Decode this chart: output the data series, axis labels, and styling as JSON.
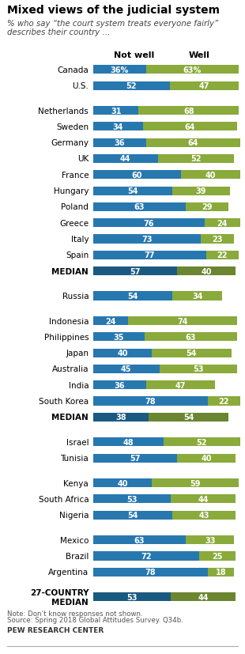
{
  "title": "Mixed views of the judicial system",
  "subtitle_line1": "% who say “the court system treats everyone fairly”",
  "subtitle_line2": "describes their country …",
  "color_not_well": "#2878b0",
  "color_well": "#8aaa3c",
  "color_median_not_well": "#1a5a80",
  "color_median_well": "#6b8530",
  "note_line1": "Note: Don’t know responses not shown.",
  "note_line2": "Source: Spring 2018 Global Attitudes Survey. Q34b.",
  "source": "PEW RESEARCH CENTER",
  "rows": [
    {
      "label": "Canada",
      "not_well": 36,
      "well": 63,
      "is_median": false,
      "show_pct": true,
      "gap_before": false
    },
    {
      "label": "U.S.",
      "not_well": 52,
      "well": 47,
      "is_median": false,
      "show_pct": false,
      "gap_before": false
    },
    {
      "label": "Netherlands",
      "not_well": 31,
      "well": 68,
      "is_median": false,
      "show_pct": false,
      "gap_before": true
    },
    {
      "label": "Sweden",
      "not_well": 34,
      "well": 64,
      "is_median": false,
      "show_pct": false,
      "gap_before": false
    },
    {
      "label": "Germany",
      "not_well": 36,
      "well": 64,
      "is_median": false,
      "show_pct": false,
      "gap_before": false
    },
    {
      "label": "UK",
      "not_well": 44,
      "well": 52,
      "is_median": false,
      "show_pct": false,
      "gap_before": false
    },
    {
      "label": "France",
      "not_well": 60,
      "well": 40,
      "is_median": false,
      "show_pct": false,
      "gap_before": false
    },
    {
      "label": "Hungary",
      "not_well": 54,
      "well": 39,
      "is_median": false,
      "show_pct": false,
      "gap_before": false
    },
    {
      "label": "Poland",
      "not_well": 63,
      "well": 29,
      "is_median": false,
      "show_pct": false,
      "gap_before": false
    },
    {
      "label": "Greece",
      "not_well": 76,
      "well": 24,
      "is_median": false,
      "show_pct": false,
      "gap_before": false
    },
    {
      "label": "Italy",
      "not_well": 73,
      "well": 23,
      "is_median": false,
      "show_pct": false,
      "gap_before": false
    },
    {
      "label": "Spain",
      "not_well": 77,
      "well": 22,
      "is_median": false,
      "show_pct": false,
      "gap_before": false
    },
    {
      "label": "MEDIAN",
      "not_well": 57,
      "well": 40,
      "is_median": true,
      "show_pct": false,
      "gap_before": false
    },
    {
      "label": "Russia",
      "not_well": 54,
      "well": 34,
      "is_median": false,
      "show_pct": false,
      "gap_before": true
    },
    {
      "label": "Indonesia",
      "not_well": 24,
      "well": 74,
      "is_median": false,
      "show_pct": false,
      "gap_before": true
    },
    {
      "label": "Philippines",
      "not_well": 35,
      "well": 63,
      "is_median": false,
      "show_pct": false,
      "gap_before": false
    },
    {
      "label": "Japan",
      "not_well": 40,
      "well": 54,
      "is_median": false,
      "show_pct": false,
      "gap_before": false
    },
    {
      "label": "Australia",
      "not_well": 45,
      "well": 53,
      "is_median": false,
      "show_pct": false,
      "gap_before": false
    },
    {
      "label": "India",
      "not_well": 36,
      "well": 47,
      "is_median": false,
      "show_pct": false,
      "gap_before": false
    },
    {
      "label": "South Korea",
      "not_well": 78,
      "well": 22,
      "is_median": false,
      "show_pct": false,
      "gap_before": false
    },
    {
      "label": "MEDIAN",
      "not_well": 38,
      "well": 54,
      "is_median": true,
      "show_pct": false,
      "gap_before": false
    },
    {
      "label": "Israel",
      "not_well": 48,
      "well": 52,
      "is_median": false,
      "show_pct": false,
      "gap_before": true
    },
    {
      "label": "Tunisia",
      "not_well": 57,
      "well": 40,
      "is_median": false,
      "show_pct": false,
      "gap_before": false
    },
    {
      "label": "Kenya",
      "not_well": 40,
      "well": 59,
      "is_median": false,
      "show_pct": false,
      "gap_before": true
    },
    {
      "label": "South Africa",
      "not_well": 53,
      "well": 44,
      "is_median": false,
      "show_pct": false,
      "gap_before": false
    },
    {
      "label": "Nigeria",
      "not_well": 54,
      "well": 43,
      "is_median": false,
      "show_pct": false,
      "gap_before": false
    },
    {
      "label": "Mexico",
      "not_well": 63,
      "well": 33,
      "is_median": false,
      "show_pct": false,
      "gap_before": true
    },
    {
      "label": "Brazil",
      "not_well": 72,
      "well": 25,
      "is_median": false,
      "show_pct": false,
      "gap_before": false
    },
    {
      "label": "Argentina",
      "not_well": 78,
      "well": 18,
      "is_median": false,
      "show_pct": false,
      "gap_before": false
    },
    {
      "label": "27-COUNTRY\nMEDIAN",
      "not_well": 53,
      "well": 44,
      "is_median": true,
      "show_pct": false,
      "gap_before": true
    }
  ]
}
